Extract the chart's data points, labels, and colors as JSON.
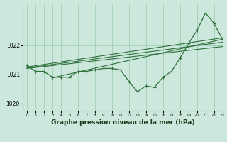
{
  "title": "",
  "xlabel": "Graphe pression niveau de la mer (hPa)",
  "ylabel": "",
  "bg_color": "#cce8dc",
  "grid_color": "#99ccb3",
  "line_color": "#2d6e3a",
  "xlim": [
    -0.5,
    23
  ],
  "ylim": [
    1019.75,
    1023.4
  ],
  "yticks": [
    1020,
    1021,
    1022
  ],
  "xticks": [
    0,
    1,
    2,
    3,
    4,
    5,
    6,
    7,
    8,
    9,
    10,
    11,
    12,
    13,
    14,
    15,
    16,
    17,
    18,
    19,
    20,
    21,
    22,
    23
  ],
  "pressure_data": [
    1021.3,
    1021.1,
    1021.1,
    1020.9,
    1020.9,
    1020.9,
    1021.1,
    1021.1,
    1021.15,
    1021.2,
    1021.2,
    1021.15,
    1020.75,
    1020.4,
    1020.6,
    1020.55,
    1020.9,
    1021.1,
    1021.55,
    1022.05,
    1022.5,
    1023.1,
    1022.75,
    1022.2
  ],
  "trend_lines": [
    {
      "x0": 0,
      "y0": 1021.25,
      "x1": 23,
      "y1": 1022.25
    },
    {
      "x0": 0,
      "y0": 1021.22,
      "x1": 23,
      "y1": 1022.1
    },
    {
      "x0": 0,
      "y0": 1021.2,
      "x1": 23,
      "y1": 1021.95
    },
    {
      "x0": 3,
      "y0": 1020.88,
      "x1": 23,
      "y1": 1022.2
    }
  ],
  "xlabel_fontsize": 6.5,
  "xlabel_fontweight": "bold",
  "xlabel_color": "#1a3a1a",
  "ytick_fontsize": 5.5,
  "xtick_fontsize": 4.0
}
